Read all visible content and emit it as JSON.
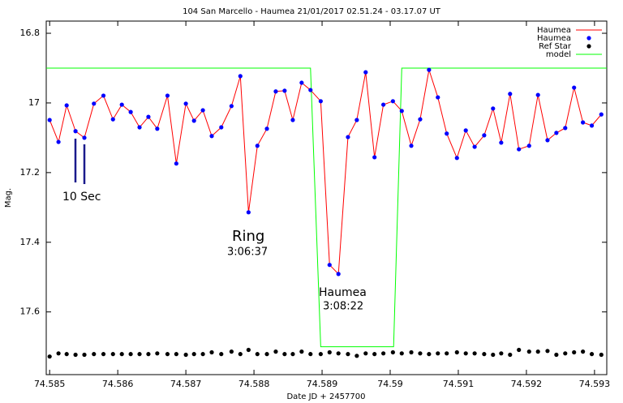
{
  "chart_data": {
    "type": "line",
    "title": "104 San Marcello - Haumea 21/01/2017  02.51.24 - 03.17.07 UT",
    "x_label": "Date JD + 2457700",
    "y_label": "Mag.",
    "xlim": [
      74.58495,
      74.59318
    ],
    "xticks": [
      74.585,
      74.586,
      74.587,
      74.588,
      74.589,
      74.59,
      74.591,
      74.592,
      74.593
    ],
    "ylim": [
      17.78,
      16.765
    ],
    "yticks": [
      16.8,
      17,
      17.2,
      17.4,
      17.6
    ],
    "grid": false,
    "legend_position": "top-right",
    "annotations": [
      "10 Sec",
      "Ring",
      "3:06:37",
      "Haumea",
      "3:08:22"
    ],
    "series": [
      {
        "name": "Haumea",
        "color": "#ff0000",
        "style": "line",
        "x": [
          74.585,
          74.58513,
          74.58525,
          74.58538,
          74.58551,
          74.58565,
          74.58579,
          74.58593,
          74.58606,
          74.58619,
          74.58632,
          74.58645,
          74.58658,
          74.58673,
          74.58686,
          74.587,
          74.58712,
          74.58725,
          74.58738,
          74.58752,
          74.58767,
          74.5878,
          74.58792,
          74.58805,
          74.58819,
          74.58832,
          74.58845,
          74.58857,
          74.5887,
          74.58883,
          74.58898,
          74.58911,
          74.58924,
          74.58938,
          74.58951,
          74.58964,
          74.58977,
          74.5899,
          74.59004,
          74.59017,
          74.59031,
          74.59044,
          74.59057,
          74.5907,
          74.59083,
          74.59098,
          74.59111,
          74.59124,
          74.59138,
          74.59151,
          74.59163,
          74.59176,
          74.59189,
          74.59204,
          74.59217,
          74.59231,
          74.59244,
          74.59257,
          74.5927,
          74.59283,
          74.59296,
          74.5931
        ],
        "values": [
          17.049,
          17.112,
          17.007,
          17.081,
          17.1,
          17.002,
          16.979,
          17.047,
          17.005,
          17.026,
          17.07,
          17.04,
          17.074,
          16.979,
          17.174,
          17.002,
          17.051,
          17.021,
          17.095,
          17.07,
          17.009,
          16.923,
          17.314,
          17.123,
          17.074,
          16.967,
          16.965,
          17.049,
          16.942,
          16.963,
          16.995,
          17.465,
          17.491,
          17.098,
          17.049,
          16.912,
          17.156,
          17.005,
          16.995,
          17.023,
          17.123,
          17.047,
          16.905,
          16.984,
          17.088,
          17.158,
          17.079,
          17.126,
          17.093,
          17.016,
          17.114,
          16.974,
          17.133,
          17.123,
          16.977,
          17.107,
          17.086,
          17.072,
          16.956,
          17.056,
          17.065,
          17.033
        ]
      },
      {
        "name": "Haumea",
        "color": "#0000ff",
        "style": "points",
        "x": [
          74.585,
          74.58513,
          74.58525,
          74.58538,
          74.58551,
          74.58565,
          74.58579,
          74.58593,
          74.58606,
          74.58619,
          74.58632,
          74.58645,
          74.58658,
          74.58673,
          74.58686,
          74.587,
          74.58712,
          74.58725,
          74.58738,
          74.58752,
          74.58767,
          74.5878,
          74.58792,
          74.58805,
          74.58819,
          74.58832,
          74.58845,
          74.58857,
          74.5887,
          74.58883,
          74.58898,
          74.58911,
          74.58924,
          74.58938,
          74.58951,
          74.58964,
          74.58977,
          74.5899,
          74.59004,
          74.59017,
          74.59031,
          74.59044,
          74.59057,
          74.5907,
          74.59083,
          74.59098,
          74.59111,
          74.59124,
          74.59138,
          74.59151,
          74.59163,
          74.59176,
          74.59189,
          74.59204,
          74.59217,
          74.59231,
          74.59244,
          74.59257,
          74.5927,
          74.59283,
          74.59296,
          74.5931
        ],
        "values": [
          17.049,
          17.112,
          17.007,
          17.081,
          17.1,
          17.002,
          16.979,
          17.047,
          17.005,
          17.026,
          17.07,
          17.04,
          17.074,
          16.979,
          17.174,
          17.002,
          17.051,
          17.021,
          17.095,
          17.07,
          17.009,
          16.923,
          17.314,
          17.123,
          17.074,
          16.967,
          16.965,
          17.049,
          16.942,
          16.963,
          16.995,
          17.465,
          17.491,
          17.098,
          17.049,
          16.912,
          17.156,
          17.005,
          16.995,
          17.023,
          17.123,
          17.047,
          16.905,
          16.984,
          17.088,
          17.158,
          17.079,
          17.126,
          17.093,
          17.016,
          17.114,
          16.974,
          17.133,
          17.123,
          16.977,
          17.107,
          17.086,
          17.072,
          16.956,
          17.056,
          17.065,
          17.033
        ]
      },
      {
        "name": "Ref Star",
        "color": "#000000",
        "style": "points",
        "x": [
          74.585,
          74.58513,
          74.58525,
          74.58538,
          74.58551,
          74.58565,
          74.58579,
          74.58593,
          74.58606,
          74.58619,
          74.58632,
          74.58645,
          74.58658,
          74.58673,
          74.58686,
          74.587,
          74.58712,
          74.58725,
          74.58738,
          74.58752,
          74.58767,
          74.5878,
          74.58792,
          74.58805,
          74.58819,
          74.58832,
          74.58845,
          74.58857,
          74.5887,
          74.58883,
          74.58898,
          74.58911,
          74.58924,
          74.58938,
          74.58951,
          74.58964,
          74.58977,
          74.5899,
          74.59004,
          74.59017,
          74.59031,
          74.59044,
          74.59057,
          74.5907,
          74.59083,
          74.59098,
          74.59111,
          74.59124,
          74.59138,
          74.59151,
          74.59163,
          74.59176,
          74.59189,
          74.59204,
          74.59217,
          74.59231,
          74.59244,
          74.59257,
          74.5927,
          74.59283,
          74.59296,
          74.5931
        ],
        "values": [
          17.728,
          17.719,
          17.721,
          17.723,
          17.723,
          17.721,
          17.721,
          17.721,
          17.721,
          17.721,
          17.721,
          17.721,
          17.719,
          17.721,
          17.721,
          17.723,
          17.721,
          17.721,
          17.716,
          17.721,
          17.714,
          17.721,
          17.709,
          17.721,
          17.721,
          17.714,
          17.721,
          17.721,
          17.714,
          17.721,
          17.721,
          17.716,
          17.719,
          17.721,
          17.726,
          17.719,
          17.721,
          17.719,
          17.716,
          17.719,
          17.716,
          17.719,
          17.721,
          17.719,
          17.719,
          17.716,
          17.719,
          17.719,
          17.721,
          17.723,
          17.719,
          17.723,
          17.709,
          17.714,
          17.714,
          17.712,
          17.723,
          17.719,
          17.716,
          17.714,
          17.721,
          17.723
        ]
      },
      {
        "name": "model",
        "color": "#00ff00",
        "style": "line",
        "x": [
          74.58495,
          74.58883,
          74.58898,
          74.59005,
          74.59017,
          74.59318
        ],
        "values": [
          16.9,
          16.9,
          17.7,
          17.7,
          16.9,
          16.9
        ]
      }
    ]
  }
}
